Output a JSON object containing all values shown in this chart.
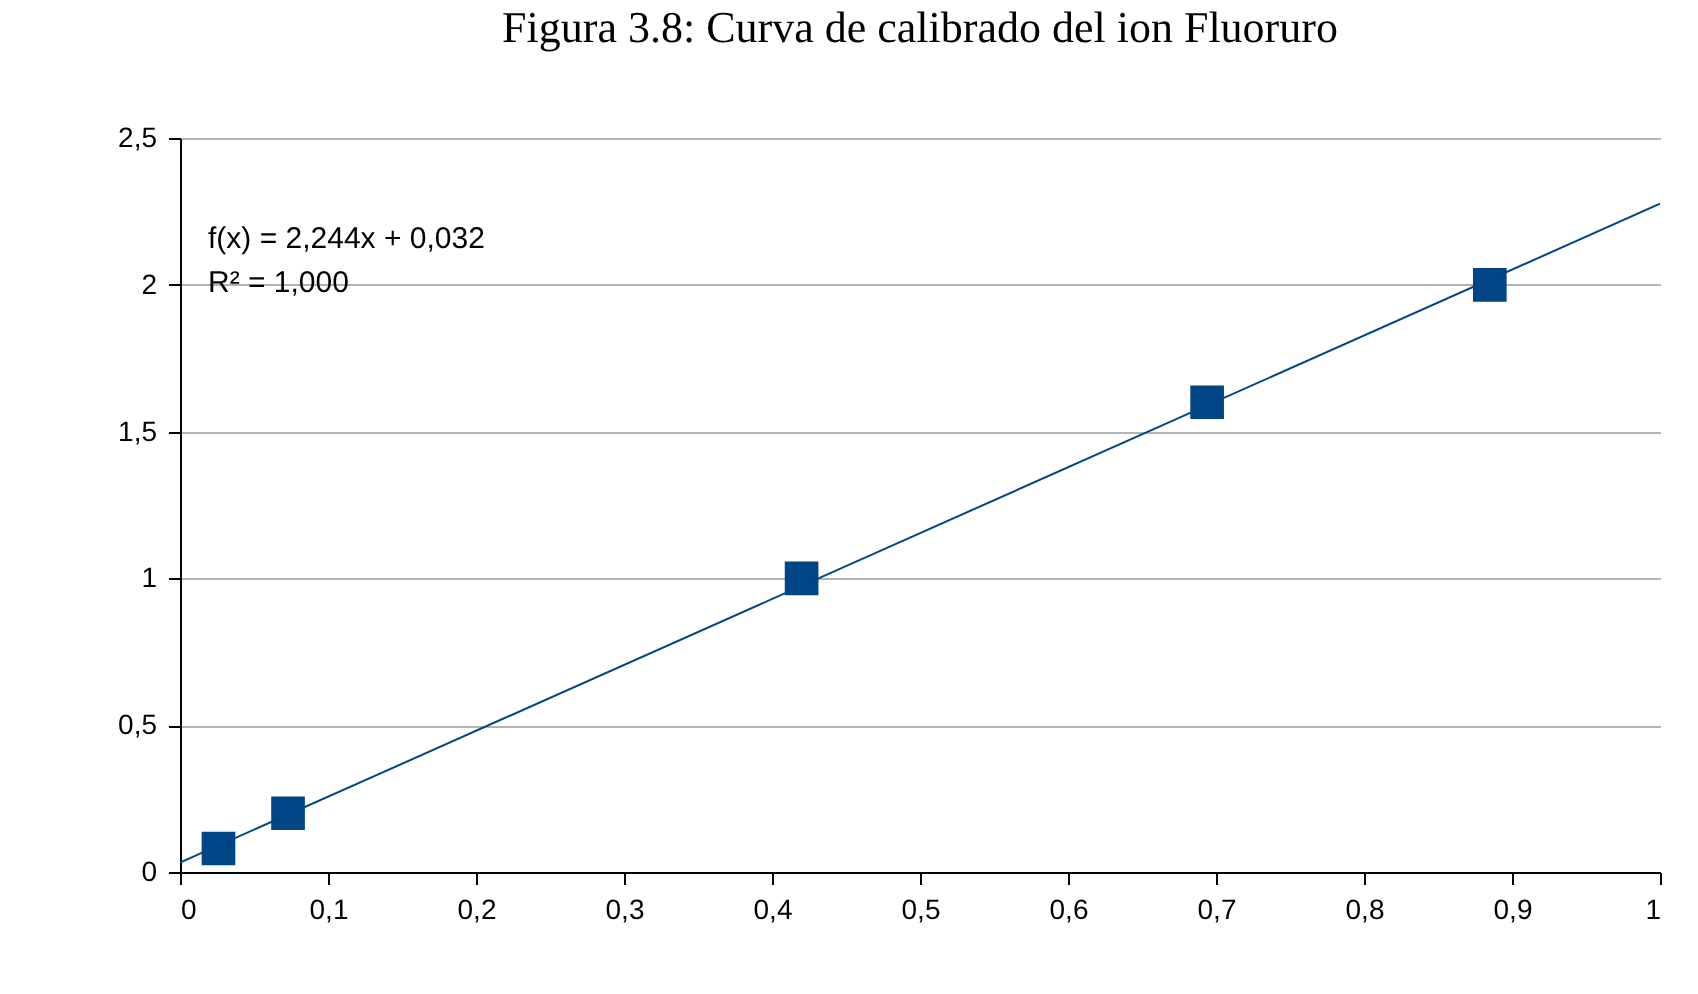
{
  "chart_data": {
    "type": "scatter",
    "title": "Figura 3.8: Curva de calibrado del ion Fluoruro",
    "x": [
      0.026,
      0.073,
      0.42,
      0.694,
      0.885
    ],
    "series": [
      {
        "color": "#004586",
        "marker": "square",
        "values": [
          0.08,
          0.2,
          1.0,
          1.6,
          2.0
        ]
      },
      {
        "type": "line",
        "color": "#004586",
        "marker": "none",
        "x": [
          0,
          1
        ],
        "values": [
          0.032,
          2.276
        ]
      }
    ],
    "annotations": [
      "f(x) = 2,244x + 0,032",
      "R² = 1,000"
    ],
    "xlim": [
      0,
      1
    ],
    "xticks": [
      0,
      {
        "value": 0.1,
        "label": "0,1"
      },
      {
        "value": 0.2,
        "label": "0,2"
      },
      {
        "value": 0.3,
        "label": "0,3"
      },
      {
        "value": 0.4,
        "label": "0,4"
      },
      {
        "value": 0.5,
        "label": "0,5"
      },
      {
        "value": 0.6,
        "label": "0,6"
      },
      {
        "value": 0.7,
        "label": "0,7"
      },
      {
        "value": 0.8,
        "label": "0,8"
      },
      {
        "value": 0.9,
        "label": "0,9"
      },
      1
    ],
    "ylim": [
      0,
      2.5
    ],
    "yticks": [
      0,
      {
        "value": 0.5,
        "label": "0,5"
      },
      1,
      {
        "value": 1.5,
        "label": "1,5"
      },
      2,
      {
        "value": 2.5,
        "label": "2,5"
      }
    ],
    "grid": "y",
    "line_style": "solid"
  }
}
